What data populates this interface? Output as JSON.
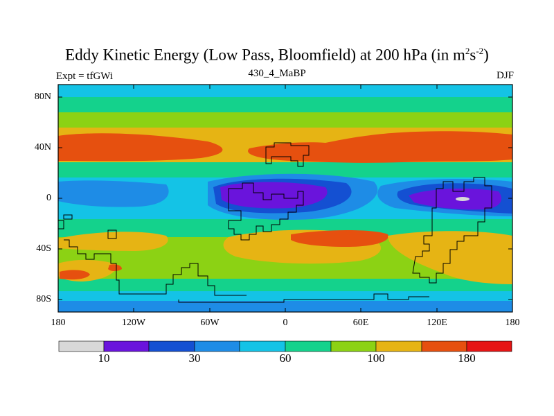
{
  "title": {
    "main": "Eddy Kinetic Energy (Low Pass, Bloomfield) at 200 hPa (in m",
    "sup1": "2",
    "mid": "s",
    "sup2": "-2",
    "close": ")"
  },
  "subtitle": {
    "left": "Expt = tfGWi",
    "center": "430_4_MaBP",
    "right": "DJF"
  },
  "map": {
    "lat_ticks": [
      "80N",
      "40N",
      "0",
      "40S",
      "80S"
    ],
    "lon_ticks": [
      "180",
      "120W",
      "60W",
      "0",
      "60E",
      "120E",
      "180"
    ]
  },
  "colorbar": {
    "colors": [
      "#d8d8d8",
      "#6a14dc",
      "#1450d2",
      "#1e8ce6",
      "#14c3e6",
      "#14d28c",
      "#8cd214",
      "#e6b414",
      "#e6500f",
      "#e61414"
    ],
    "labels": [
      "10",
      "30",
      "60",
      "100",
      "180"
    ]
  }
}
